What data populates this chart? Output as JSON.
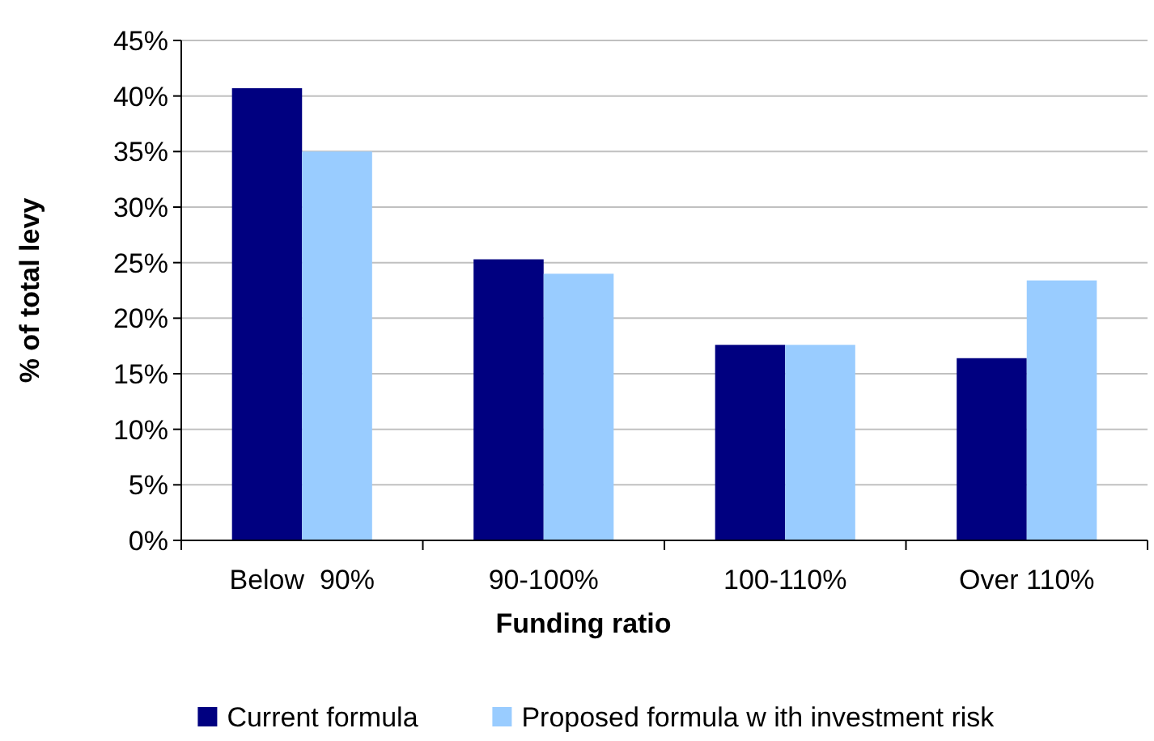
{
  "chart_data": {
    "type": "bar",
    "xlabel": "Funding ratio",
    "ylabel": "% of total levy",
    "categories": [
      "Below  90%",
      "90-100%",
      "100-110%",
      "Over 110%"
    ],
    "series": [
      {
        "name": "Current formula",
        "color": "#000080",
        "values": [
          40.7,
          25.3,
          17.6,
          16.4
        ]
      },
      {
        "name": "Proposed formula w ith investment risk",
        "color": "#99ccff",
        "values": [
          35.0,
          24.0,
          17.6,
          23.4
        ]
      }
    ],
    "ylim": [
      0,
      45
    ],
    "yticks": [
      {
        "value": 0,
        "label": "0%"
      },
      {
        "value": 5,
        "label": "5%"
      },
      {
        "value": 10,
        "label": "10%"
      },
      {
        "value": 15,
        "label": "15%"
      },
      {
        "value": 20,
        "label": "20%"
      },
      {
        "value": 25,
        "label": "25%"
      },
      {
        "value": 30,
        "label": "30%"
      },
      {
        "value": 35,
        "label": "35%"
      },
      {
        "value": 40,
        "label": "40%"
      },
      {
        "value": 45,
        "label": "45%"
      }
    ],
    "grid": "y",
    "legend": "bottom"
  }
}
